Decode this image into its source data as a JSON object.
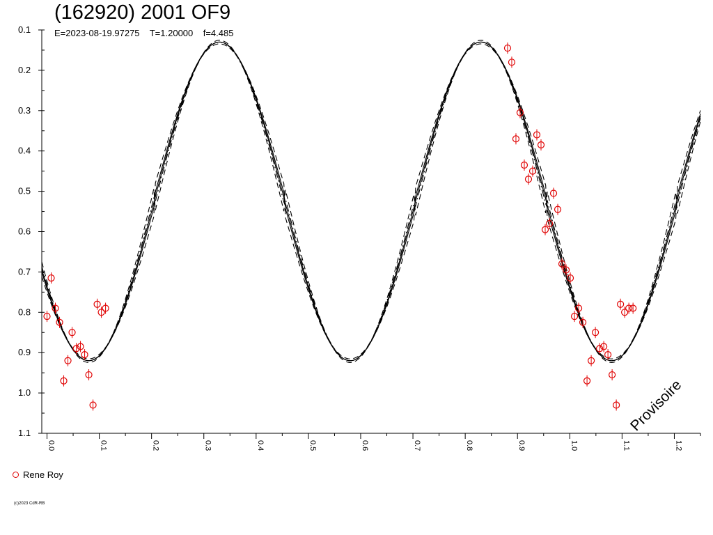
{
  "chart_data": {
    "type": "scatter",
    "title": "(162920) 2001 OF9",
    "subtitle": "E=2023-08-19.97275    T=1.20000    f=4.485",
    "xlim": [
      -0.01,
      1.25
    ],
    "ylim": [
      0.1,
      1.1
    ],
    "y_inverted": true,
    "x_ticks": [
      "0.0",
      "0.1",
      "0.2",
      "0.3",
      "0.4",
      "0.5",
      "0.6",
      "0.7",
      "0.8",
      "0.9",
      "1.0",
      "1.1",
      "1.2"
    ],
    "y_ticks": [
      "0.1",
      "0.2",
      "0.3",
      "0.4",
      "0.5",
      "0.6",
      "0.7",
      "0.8",
      "0.9",
      "1.0",
      "1.1"
    ],
    "legend_position": "bottom-left",
    "grid": false,
    "series": [
      {
        "name": "Rene Roy",
        "color": "#e00000",
        "marker": "open-circle",
        "x": [
          0.0,
          0.008,
          0.016,
          0.024,
          0.032,
          0.04,
          0.048,
          0.056,
          0.064,
          0.072,
          0.08,
          0.088,
          0.096,
          0.104,
          0.112,
          0.881,
          0.889,
          0.897,
          0.905,
          0.913,
          0.921,
          0.929,
          0.937,
          0.945,
          0.953,
          0.961,
          0.969,
          0.977,
          0.985,
          0.993,
          1.001,
          1.009,
          1.017,
          1.025,
          1.033,
          1.041,
          1.049,
          1.057,
          1.065,
          1.073,
          1.081,
          1.089,
          1.097,
          1.105,
          1.113,
          1.121
        ],
        "y": [
          0.81,
          0.715,
          0.79,
          0.825,
          0.97,
          0.92,
          0.85,
          0.89,
          0.885,
          0.905,
          0.955,
          1.03,
          0.78,
          0.8,
          0.79,
          0.145,
          0.18,
          0.37,
          0.305,
          0.435,
          0.47,
          0.45,
          0.36,
          0.385,
          0.595,
          0.58,
          0.505,
          0.545,
          0.68,
          0.695,
          0.715,
          0.81,
          0.79,
          0.825,
          0.97,
          0.92,
          0.85,
          0.89,
          0.885,
          0.905,
          0.955,
          1.03,
          0.78,
          0.8,
          0.79,
          0.79
        ]
      }
    ],
    "model_curves": [
      {
        "label": "fit",
        "style": "solid",
        "offset": 0.0,
        "amp": 1.0
      },
      {
        "label": "upper-1",
        "style": "dashdot",
        "offset": -0.012,
        "amp": 1.03
      },
      {
        "label": "lower-1",
        "style": "solid",
        "offset": 0.012,
        "amp": 0.97
      },
      {
        "label": "upper-2",
        "style": "dashed",
        "offset": -0.035,
        "amp": 1.1
      },
      {
        "label": "lower-2",
        "style": "dashed",
        "offset": 0.035,
        "amp": 0.9
      }
    ]
  },
  "legend": {
    "label": "Rene Roy"
  },
  "copyright": "(c)2023 CdR-RB",
  "watermark": "Provisoire"
}
